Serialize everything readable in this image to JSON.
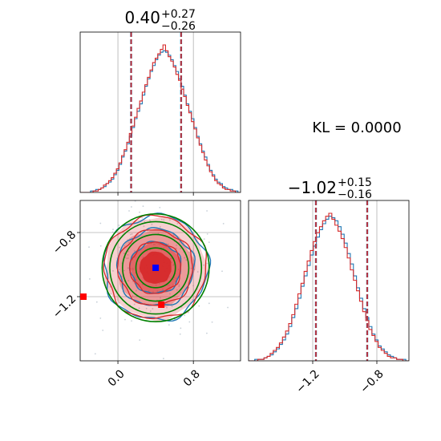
{
  "chart_data": {
    "type": "corner",
    "colors": {
      "series_a": "#1f77b4",
      "series_b": "#d62728",
      "truth_contour": "#008000",
      "truth_marker": "#0000ff",
      "outlier_marker": "#ff0000",
      "grid": "#b0b0b0"
    },
    "annotation": {
      "kl": "KL = 0.0000"
    },
    "params": [
      {
        "title": {
          "median": "0.40",
          "plus": "+0.27",
          "minus": "−0.26"
        },
        "range": [
          -0.4,
          1.3
        ],
        "ticks": [
          0.0,
          0.8
        ],
        "tick_labels": [
          "0.0",
          "0.8"
        ],
        "quantiles": [
          0.14,
          0.4,
          0.67
        ],
        "hist_a": [
          0,
          0,
          0,
          0,
          1,
          1,
          2,
          2,
          3,
          4,
          6,
          7,
          9,
          12,
          15,
          19,
          24,
          28,
          33,
          38,
          44,
          50,
          55,
          60,
          66,
          72,
          77,
          82,
          86,
          90,
          93,
          95,
          96,
          95,
          93,
          90,
          86,
          82,
          77,
          72,
          66,
          60,
          55,
          50,
          44,
          38,
          33,
          28,
          24,
          19,
          15,
          12,
          9,
          7,
          6,
          4,
          3,
          2,
          2,
          1,
          1,
          0
        ],
        "hist_b": [
          0,
          0,
          0,
          0,
          0,
          1,
          1,
          2,
          3,
          5,
          6,
          8,
          10,
          13,
          16,
          20,
          25,
          29,
          34,
          40,
          45,
          51,
          57,
          62,
          68,
          73,
          78,
          83,
          88,
          91,
          94,
          97,
          100,
          96,
          92,
          89,
          85,
          80,
          76,
          70,
          65,
          59,
          54,
          48,
          43,
          37,
          32,
          27,
          22,
          18,
          14,
          11,
          8,
          6,
          5,
          3,
          2,
          2,
          1,
          1,
          0,
          0
        ]
      },
      {
        "title": {
          "median": "−1.02",
          "plus": "+0.15",
          "minus": "−0.16"
        },
        "range": [
          -1.6,
          -0.6
        ],
        "ticks": [
          -1.2,
          -0.8
        ],
        "tick_labels": [
          "−1.2",
          "−0.8"
        ],
        "quantiles": [
          -1.18,
          -1.02,
          -0.86
        ],
        "hist_a": [
          0,
          0,
          1,
          1,
          1,
          2,
          3,
          4,
          6,
          8,
          11,
          14,
          18,
          23,
          29,
          35,
          42,
          50,
          57,
          64,
          71,
          77,
          83,
          88,
          92,
          95,
          97,
          96,
          94,
          90,
          85,
          79,
          72,
          65,
          57,
          49,
          42,
          35,
          29,
          23,
          18,
          14,
          10,
          8,
          6,
          4,
          3,
          2,
          1,
          1,
          1,
          0
        ],
        "hist_b": [
          0,
          0,
          0,
          1,
          1,
          2,
          3,
          5,
          7,
          9,
          12,
          16,
          20,
          25,
          31,
          38,
          45,
          52,
          60,
          67,
          74,
          80,
          86,
          90,
          94,
          97,
          99,
          95,
          91,
          87,
          82,
          76,
          69,
          61,
          54,
          47,
          40,
          33,
          27,
          21,
          17,
          13,
          9,
          7,
          5,
          3,
          2,
          2,
          1,
          1,
          0,
          0
        ]
      }
    ],
    "contour_2d": {
      "center": [
        0.4,
        -1.02
      ],
      "sigma": [
        0.27,
        0.16
      ],
      "levels": [
        0.5,
        1.0,
        1.5,
        2.0
      ],
      "truth_point": [
        0.4,
        -1.02
      ],
      "outlier_points": [
        [
          -0.4,
          -1.2
        ],
        [
          0.46,
          -1.25
        ]
      ]
    }
  }
}
